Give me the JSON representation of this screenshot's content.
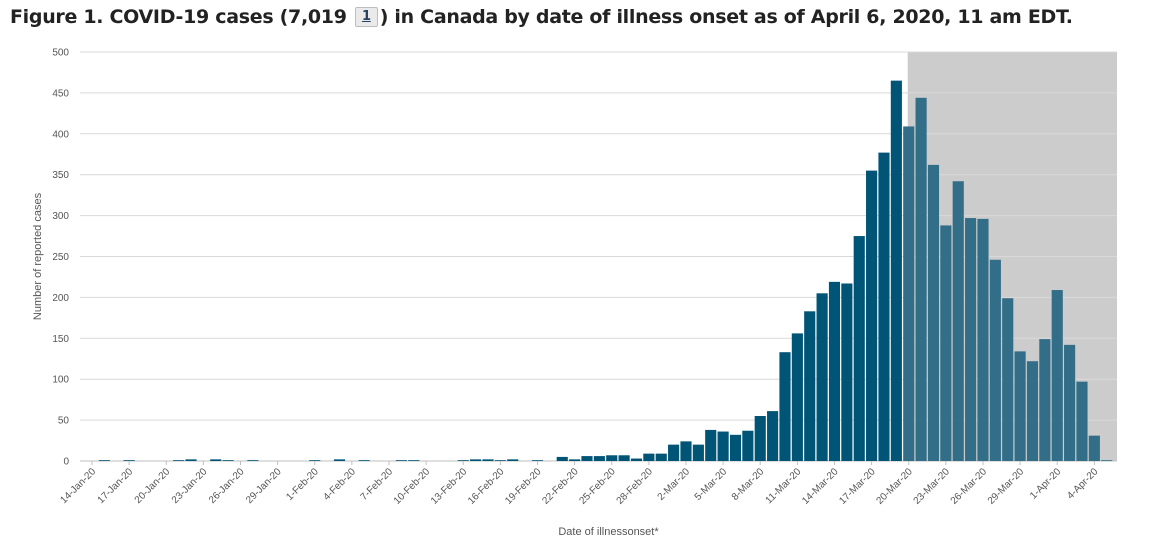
{
  "title": {
    "before": "Figure 1. COVID-19 cases (7,019 ",
    "footnote": "1",
    "after": ") in Canada by date of illness onset as of April 6, 2020, 11 am EDT."
  },
  "chart_data": {
    "type": "bar",
    "xlabel": "Date of illnessonset*",
    "ylabel": "Number of reported cases",
    "ylim": [
      0,
      500
    ],
    "yticks": [
      0,
      50,
      100,
      150,
      200,
      250,
      300,
      350,
      400,
      450,
      500
    ],
    "grid": true,
    "colors": {
      "bar": "#005475",
      "bar_shaded": "#336e88",
      "shade": "#cccccc",
      "grid": "#d9d9d9"
    },
    "shaded_region": {
      "from": "20-Mar-20",
      "to": "5-Apr-20"
    },
    "categories": [
      "14-Jan-20",
      "15-Jan-20",
      "16-Jan-20",
      "17-Jan-20",
      "18-Jan-20",
      "19-Jan-20",
      "20-Jan-20",
      "21-Jan-20",
      "22-Jan-20",
      "23-Jan-20",
      "24-Jan-20",
      "25-Jan-20",
      "26-Jan-20",
      "27-Jan-20",
      "28-Jan-20",
      "29-Jan-20",
      "30-Jan-20",
      "31-Jan-20",
      "1-Feb-20",
      "2-Feb-20",
      "3-Feb-20",
      "4-Feb-20",
      "5-Feb-20",
      "6-Feb-20",
      "7-Feb-20",
      "8-Feb-20",
      "9-Feb-20",
      "10-Feb-20",
      "11-Feb-20",
      "12-Feb-20",
      "13-Feb-20",
      "14-Feb-20",
      "15-Feb-20",
      "16-Feb-20",
      "17-Feb-20",
      "18-Feb-20",
      "19-Feb-20",
      "20-Feb-20",
      "21-Feb-20",
      "22-Feb-20",
      "23-Feb-20",
      "24-Feb-20",
      "25-Feb-20",
      "26-Feb-20",
      "27-Feb-20",
      "28-Feb-20",
      "29-Feb-20",
      "1-Mar-20",
      "2-Mar-20",
      "3-Mar-20",
      "4-Mar-20",
      "5-Mar-20",
      "6-Mar-20",
      "7-Mar-20",
      "8-Mar-20",
      "9-Mar-20",
      "10-Mar-20",
      "11-Mar-20",
      "12-Mar-20",
      "13-Mar-20",
      "14-Mar-20",
      "15-Mar-20",
      "16-Mar-20",
      "17-Mar-20",
      "18-Mar-20",
      "19-Mar-20",
      "20-Mar-20",
      "21-Mar-20",
      "22-Mar-20",
      "23-Mar-20",
      "24-Mar-20",
      "25-Mar-20",
      "26-Mar-20",
      "27-Mar-20",
      "28-Mar-20",
      "29-Mar-20",
      "30-Mar-20",
      "31-Mar-20",
      "1-Apr-20",
      "2-Apr-20",
      "3-Apr-20",
      "4-Apr-20",
      "5-Apr-20"
    ],
    "values": [
      0,
      1,
      0,
      1,
      0,
      0,
      0,
      1,
      2,
      0,
      2,
      1,
      0,
      1,
      0,
      0,
      0,
      0,
      1,
      0,
      2,
      0,
      1,
      0,
      0,
      1,
      1,
      0,
      0,
      0,
      1,
      2,
      2,
      1,
      2,
      0,
      1,
      0,
      5,
      2,
      6,
      6,
      7,
      7,
      3,
      9,
      9,
      20,
      24,
      20,
      38,
      36,
      32,
      37,
      55,
      61,
      133,
      156,
      183,
      205,
      219,
      217,
      275,
      355,
      377,
      465,
      409,
      444,
      362,
      288,
      342,
      297,
      296,
      246,
      199,
      134,
      122,
      149,
      209,
      142,
      97,
      31,
      1
    ],
    "tick_labels": [
      "14-Jan-20",
      "17-Jan-20",
      "20-Jan-20",
      "23-Jan-20",
      "26-Jan-20",
      "29-Jan-20",
      "1-Feb-20",
      "4-Feb-20",
      "7-Feb-20",
      "10-Feb-20",
      "13-Feb-20",
      "16-Feb-20",
      "19-Feb-20",
      "22-Feb-20",
      "25-Feb-20",
      "28-Feb-20",
      "2-Mar-20",
      "5-Mar-20",
      "8-Mar-20",
      "11-Mar-20",
      "14-Mar-20",
      "17-Mar-20",
      "20-Mar-20",
      "23-Mar-20",
      "26-Mar-20",
      "29-Mar-20",
      "1-Apr-20",
      "4-Apr-20"
    ]
  }
}
